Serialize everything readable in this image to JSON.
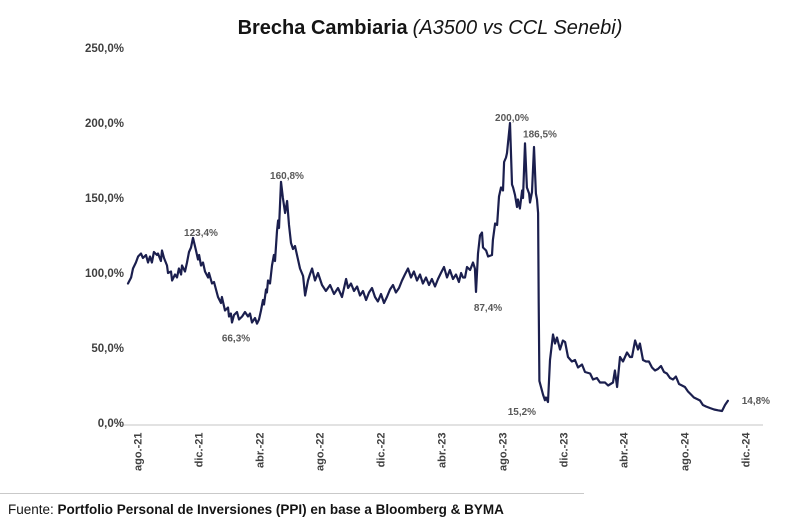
{
  "title": {
    "main": "Brecha Cambiaria",
    "sub": "(A3500 vs CCL Senebi)"
  },
  "footer": {
    "prefix": "Fuente: ",
    "source": "Portfolio Personal de Inversiones (PPI) en base a Bloomberg & BYMA"
  },
  "theme": {
    "line_color": "#1b1f4e",
    "data_label_color": "#595959",
    "axis_text_color": "#404040",
    "axis_line_color": "#d9d9d9"
  },
  "chart_data": {
    "type": "line",
    "title": "Brecha Cambiaria (A3500 vs CCL Senebi)",
    "xlabel": "",
    "ylabel": "",
    "ylim": [
      0,
      250
    ],
    "grid": false,
    "legend": false,
    "x_tick_labels": [
      "ago.-21",
      "dic.-21",
      "abr.-22",
      "ago.-22",
      "dic.-22",
      "abr.-23",
      "ago.-23",
      "dic.-23",
      "abr.-24",
      "ago.-24",
      "dic.-24"
    ],
    "y_ticks": [
      {
        "value": 250,
        "label": "250,0%"
      },
      {
        "value": 200,
        "label": "200,0%"
      },
      {
        "value": 150,
        "label": "150,0%"
      },
      {
        "value": 100,
        "label": "100,0%"
      },
      {
        "value": 50,
        "label": "50,0%"
      },
      {
        "value": 0,
        "label": "0,0%"
      }
    ],
    "annotations": [
      {
        "t": 4.26,
        "value": 123.4,
        "label": "123,4%"
      },
      {
        "t": 10.03,
        "value": 160.8,
        "label": "160,8%"
      },
      {
        "t": 8.46,
        "value": 66.3,
        "label": "66,3%"
      },
      {
        "t": 25.05,
        "value": 200.0,
        "label": "200,0%"
      },
      {
        "t": 26.03,
        "value": 186.5,
        "label": "186,5%"
      },
      {
        "t": 22.82,
        "value": 87.4,
        "label": "87,4%"
      },
      {
        "t": 27.34,
        "value": 15.2,
        "label": "15,2%"
      },
      {
        "t": 39.34,
        "value": 14.8,
        "label": "14,8%"
      }
    ],
    "series": [
      {
        "name": "Brecha cambiaria A3500 vs CCL Senebi",
        "x_unit": "months since ago-21",
        "points": [
          [
            0,
            93
          ],
          [
            0.2,
            97
          ],
          [
            0.33,
            103
          ],
          [
            0.52,
            107
          ],
          [
            0.66,
            111
          ],
          [
            0.85,
            113
          ],
          [
            0.98,
            110
          ],
          [
            1.18,
            112
          ],
          [
            1.31,
            107
          ],
          [
            1.44,
            111
          ],
          [
            1.57,
            107
          ],
          [
            1.7,
            114
          ],
          [
            1.9,
            112
          ],
          [
            1.97,
            113
          ],
          [
            2.16,
            108
          ],
          [
            2.23,
            115
          ],
          [
            2.36,
            110
          ],
          [
            2.56,
            105
          ],
          [
            2.62,
            100
          ],
          [
            2.82,
            101
          ],
          [
            2.89,
            95
          ],
          [
            3.08,
            99
          ],
          [
            3.21,
            97
          ],
          [
            3.34,
            103
          ],
          [
            3.48,
            99
          ],
          [
            3.54,
            105
          ],
          [
            3.74,
            101
          ],
          [
            3.87,
            107
          ],
          [
            4,
            114
          ],
          [
            4.13,
            117
          ],
          [
            4.26,
            123.4
          ],
          [
            4.46,
            115
          ],
          [
            4.59,
            109
          ],
          [
            4.66,
            112
          ],
          [
            4.79,
            105
          ],
          [
            4.92,
            107
          ],
          [
            5.05,
            101
          ],
          [
            5.25,
            97
          ],
          [
            5.31,
            100
          ],
          [
            5.51,
            93
          ],
          [
            5.64,
            94
          ],
          [
            5.77,
            89
          ],
          [
            5.9,
            84
          ],
          [
            6.1,
            80
          ],
          [
            6.16,
            84
          ],
          [
            6.36,
            75
          ],
          [
            6.56,
            77
          ],
          [
            6.62,
            71
          ],
          [
            6.75,
            73
          ],
          [
            6.82,
            67
          ],
          [
            6.95,
            72
          ],
          [
            7.15,
            74
          ],
          [
            7.28,
            69
          ],
          [
            7.48,
            71
          ],
          [
            7.67,
            74
          ],
          [
            7.87,
            71
          ],
          [
            8,
            73
          ],
          [
            8.13,
            67
          ],
          [
            8.33,
            70
          ],
          [
            8.46,
            66.3
          ],
          [
            8.59,
            69
          ],
          [
            8.72,
            75
          ],
          [
            8.85,
            82
          ],
          [
            8.92,
            79
          ],
          [
            9.05,
            89
          ],
          [
            9.11,
            87
          ],
          [
            9.18,
            95
          ],
          [
            9.31,
            93
          ],
          [
            9.44,
            105
          ],
          [
            9.57,
            112
          ],
          [
            9.64,
            108
          ],
          [
            9.77,
            128
          ],
          [
            9.84,
            135
          ],
          [
            9.9,
            130
          ],
          [
            10.03,
            160.8
          ],
          [
            10.16,
            150
          ],
          [
            10.3,
            140
          ],
          [
            10.43,
            148
          ],
          [
            10.56,
            132
          ],
          [
            10.69,
            120
          ],
          [
            10.82,
            116
          ],
          [
            10.95,
            118
          ],
          [
            11.08,
            112
          ],
          [
            11.28,
            103
          ],
          [
            11.48,
            98
          ],
          [
            11.61,
            85
          ],
          [
            11.8,
            95
          ],
          [
            11.93,
            99
          ],
          [
            12.07,
            103
          ],
          [
            12.26,
            95
          ],
          [
            12.46,
            100
          ],
          [
            12.59,
            96
          ],
          [
            12.72,
            92
          ],
          [
            12.98,
            88
          ],
          [
            13.25,
            92
          ],
          [
            13.51,
            86
          ],
          [
            13.77,
            90
          ],
          [
            14.03,
            84
          ],
          [
            14.3,
            96
          ],
          [
            14.43,
            90
          ],
          [
            14.62,
            93
          ],
          [
            14.82,
            88
          ],
          [
            15.02,
            91
          ],
          [
            15.21,
            85
          ],
          [
            15.41,
            88
          ],
          [
            15.61,
            82
          ],
          [
            15.8,
            87
          ],
          [
            16,
            90
          ],
          [
            16.2,
            84
          ],
          [
            16.39,
            81
          ],
          [
            16.59,
            86
          ],
          [
            16.79,
            80
          ],
          [
            16.98,
            84
          ],
          [
            17.18,
            89
          ],
          [
            17.38,
            92
          ],
          [
            17.57,
            87
          ],
          [
            17.77,
            90
          ],
          [
            17.97,
            95
          ],
          [
            18.16,
            99
          ],
          [
            18.36,
            103
          ],
          [
            18.56,
            97
          ],
          [
            18.75,
            101
          ],
          [
            18.95,
            95
          ],
          [
            19.15,
            99
          ],
          [
            19.34,
            93
          ],
          [
            19.54,
            97
          ],
          [
            19.74,
            92
          ],
          [
            19.93,
            96
          ],
          [
            20.13,
            91
          ],
          [
            20.33,
            96
          ],
          [
            20.52,
            100
          ],
          [
            20.72,
            104
          ],
          [
            20.92,
            97
          ],
          [
            21.11,
            102
          ],
          [
            21.31,
            96
          ],
          [
            21.51,
            99
          ],
          [
            21.7,
            94
          ],
          [
            21.84,
            100
          ],
          [
            21.97,
            97
          ],
          [
            22.1,
            97
          ],
          [
            22.23,
            104
          ],
          [
            22.43,
            102
          ],
          [
            22.62,
            107
          ],
          [
            22.75,
            103
          ],
          [
            22.82,
            87.4
          ],
          [
            22.95,
            113
          ],
          [
            23.08,
            125
          ],
          [
            23.21,
            127
          ],
          [
            23.28,
            117
          ],
          [
            23.48,
            115
          ],
          [
            23.61,
            111
          ],
          [
            23.87,
            112
          ],
          [
            23.93,
            122
          ],
          [
            24.07,
            133
          ],
          [
            24.2,
            132
          ],
          [
            24.33,
            151
          ],
          [
            24.46,
            157
          ],
          [
            24.59,
            155
          ],
          [
            24.66,
            174
          ],
          [
            24.79,
            177
          ],
          [
            24.85,
            180
          ],
          [
            25.05,
            200
          ],
          [
            25.18,
            159
          ],
          [
            25.25,
            157
          ],
          [
            25.38,
            152
          ],
          [
            25.51,
            144
          ],
          [
            25.57,
            149
          ],
          [
            25.7,
            143
          ],
          [
            25.84,
            155
          ],
          [
            25.9,
            150
          ],
          [
            26.03,
            186.5
          ],
          [
            26.16,
            157
          ],
          [
            26.3,
            153
          ],
          [
            26.36,
            147
          ],
          [
            26.49,
            154
          ],
          [
            26.62,
            184
          ],
          [
            26.75,
            153
          ],
          [
            26.82,
            149
          ],
          [
            26.89,
            140
          ],
          [
            26.93,
            80
          ],
          [
            26.98,
            28
          ],
          [
            27.08,
            24
          ],
          [
            27.21,
            19
          ],
          [
            27.34,
            15.2
          ],
          [
            27.41,
            17
          ],
          [
            27.54,
            14
          ],
          [
            27.67,
            42
          ],
          [
            27.87,
            59
          ],
          [
            28,
            53
          ],
          [
            28.13,
            57
          ],
          [
            28.33,
            49
          ],
          [
            28.52,
            55
          ],
          [
            28.66,
            54
          ],
          [
            28.85,
            44
          ],
          [
            29.11,
            41
          ],
          [
            29.31,
            42
          ],
          [
            29.51,
            37
          ],
          [
            29.77,
            39
          ],
          [
            29.97,
            34
          ],
          [
            30.3,
            33
          ],
          [
            30.49,
            29
          ],
          [
            30.75,
            30
          ],
          [
            30.95,
            27
          ],
          [
            31.28,
            27
          ],
          [
            31.48,
            25
          ],
          [
            31.8,
            27
          ],
          [
            31.93,
            35
          ],
          [
            32.07,
            24
          ],
          [
            32.26,
            44
          ],
          [
            32.46,
            41
          ],
          [
            32.72,
            47
          ],
          [
            32.92,
            44
          ],
          [
            33.05,
            44
          ],
          [
            33.25,
            55
          ],
          [
            33.44,
            49
          ],
          [
            33.57,
            53
          ],
          [
            33.77,
            42
          ],
          [
            33.97,
            41
          ],
          [
            34.16,
            41
          ],
          [
            34.36,
            37
          ],
          [
            34.56,
            35
          ],
          [
            34.75,
            36
          ],
          [
            34.95,
            38
          ],
          [
            35.15,
            34
          ],
          [
            35.34,
            33
          ],
          [
            35.54,
            30
          ],
          [
            35.74,
            29
          ],
          [
            35.93,
            31
          ],
          [
            36.13,
            26
          ],
          [
            36.33,
            25
          ],
          [
            36.52,
            24
          ],
          [
            36.72,
            21
          ],
          [
            36.92,
            19
          ],
          [
            37.11,
            17
          ],
          [
            37.31,
            16
          ],
          [
            37.51,
            15
          ],
          [
            37.7,
            12
          ],
          [
            37.9,
            11
          ],
          [
            38.16,
            10
          ],
          [
            38.43,
            9
          ],
          [
            38.69,
            8.5
          ],
          [
            38.95,
            8
          ],
          [
            39.15,
            12
          ],
          [
            39.34,
            14.8
          ]
        ]
      }
    ]
  }
}
